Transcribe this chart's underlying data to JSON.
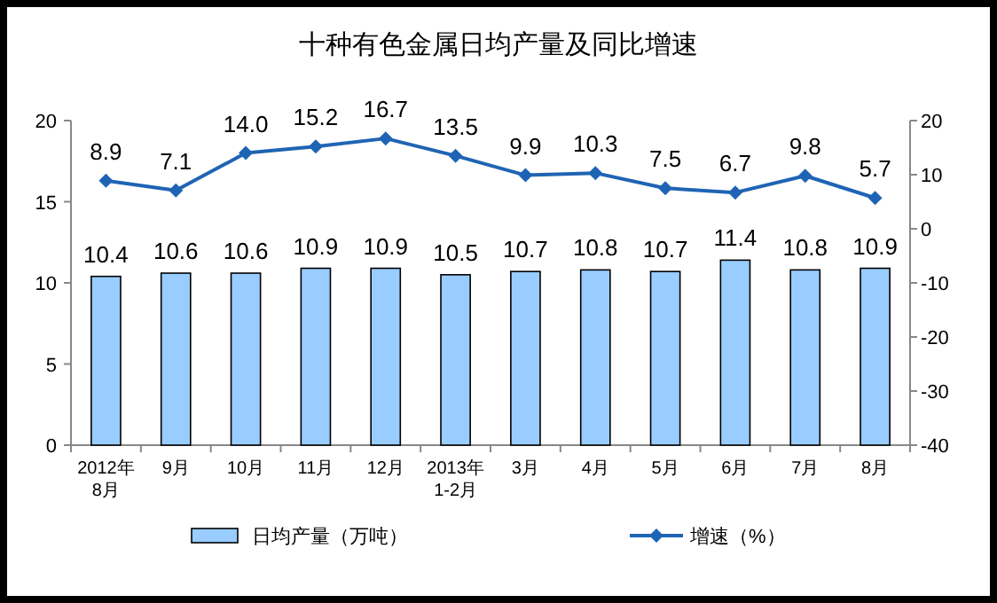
{
  "chart_data": {
    "type": "bar",
    "title": "十种有色金属日均产量及同比增速",
    "categories": [
      "2012年\n8月",
      "9月",
      "10月",
      "11月",
      "12月",
      "2013年\n1-2月",
      "3月",
      "4月",
      "5月",
      "6月",
      "7月",
      "8月"
    ],
    "series": [
      {
        "name": "日均产量（万吨）",
        "color": "#99ccff",
        "values": [
          10.4,
          10.6,
          10.6,
          10.9,
          10.9,
          10.5,
          10.7,
          10.8,
          10.7,
          11.4,
          10.8,
          10.9
        ]
      },
      {
        "name": "增速（%）",
        "type": "line",
        "axis": "y2",
        "color": "#1f64b4",
        "marker": "diamond",
        "values": [
          8.9,
          7.1,
          14.0,
          15.2,
          16.7,
          13.5,
          9.9,
          10.3,
          7.5,
          6.7,
          9.8,
          5.7
        ],
        "value_labels": [
          "8.9",
          "7.1",
          "14.0",
          "15.2",
          "16.7",
          "13.5",
          "9.9",
          "10.3",
          "7.5",
          "6.7",
          "9.8",
          "5.7"
        ]
      }
    ],
    "ylim": [
      0,
      20
    ],
    "yticks": [
      0,
      5,
      10,
      15,
      20
    ],
    "y2lim": [
      -40,
      20
    ],
    "y2ticks": [
      -40,
      -30,
      -20,
      -10,
      0,
      10,
      20
    ],
    "data_labels": true,
    "legend": "bottom",
    "grid": false
  }
}
